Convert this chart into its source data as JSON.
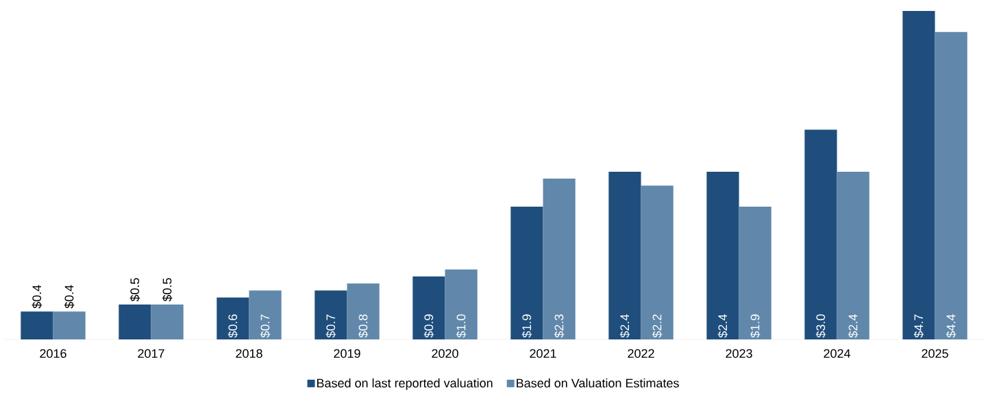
{
  "chart_data": {
    "type": "bar",
    "categories": [
      "2016",
      "2017",
      "2018",
      "2019",
      "2020",
      "2021",
      "2022",
      "2023",
      "2024",
      "2025"
    ],
    "series": [
      {
        "name": "Based on last reported valuation",
        "color": "#1f4e7d",
        "values": [
          0.4,
          0.5,
          0.6,
          0.7,
          0.9,
          1.9,
          2.4,
          2.4,
          3.0,
          4.7
        ],
        "value_labels": [
          "$0.4",
          "$0.5",
          "$0.6",
          "$0.7",
          "$0.9",
          "$1.9",
          "$2.4",
          "$2.4",
          "$3.0",
          "$4.7"
        ]
      },
      {
        "name": "Based on Valuation Estimates",
        "color": "#6188ab",
        "values": [
          0.4,
          0.5,
          0.7,
          0.8,
          1.0,
          2.3,
          2.2,
          1.9,
          2.4,
          4.4
        ],
        "value_labels": [
          "$0.4",
          "$0.5",
          "$0.7",
          "$0.8",
          "$1.0",
          "$2.3",
          "$2.2",
          "$1.9",
          "$2.4",
          "$4.4"
        ]
      }
    ],
    "legend": "bottom"
  }
}
